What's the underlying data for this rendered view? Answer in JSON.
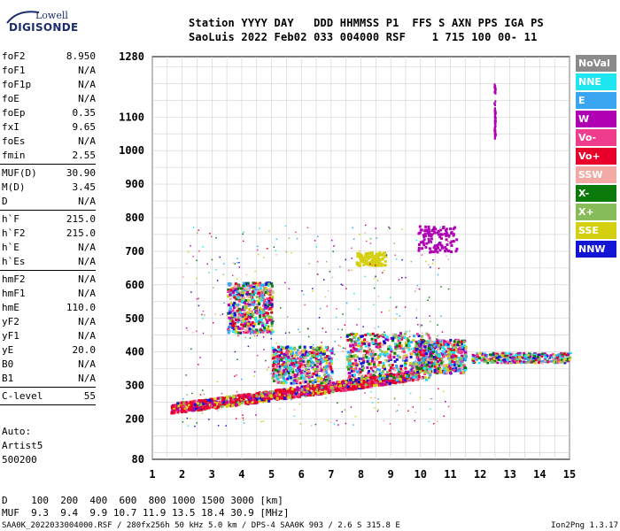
{
  "logo": {
    "line1": "Lowell",
    "line2": "DIGISONDE"
  },
  "header": {
    "labels": "Station YYYY DAY   DDD HHMMSS P1  FFS S AXN PPS IGA PS",
    "values": "SaoLuis 2022 Feb02 033 004000 RSF    1 715 100 00- 11"
  },
  "params": {
    "group1": [
      {
        "label": "foF2",
        "value": "8.950"
      },
      {
        "label": "foF1",
        "value": "N/A"
      },
      {
        "label": "foF1p",
        "value": "N/A"
      },
      {
        "label": "foE",
        "value": "N/A"
      },
      {
        "label": "foEp",
        "value": "0.35"
      },
      {
        "label": "fxI",
        "value": "9.65"
      },
      {
        "label": "foEs",
        "value": "N/A"
      },
      {
        "label": "fmin",
        "value": "2.55"
      }
    ],
    "group2": [
      {
        "label": "MUF(D)",
        "value": "30.90"
      },
      {
        "label": "M(D)",
        "value": "3.45"
      },
      {
        "label": "D",
        "value": "N/A"
      }
    ],
    "group3": [
      {
        "label": "h`F",
        "value": "215.0"
      },
      {
        "label": "h`F2",
        "value": "215.0"
      },
      {
        "label": "h`E",
        "value": "N/A"
      },
      {
        "label": "h`Es",
        "value": "N/A"
      }
    ],
    "group4": [
      {
        "label": "hmF2",
        "value": "N/A"
      },
      {
        "label": "hmF1",
        "value": "N/A"
      },
      {
        "label": "hmE",
        "value": "110.0"
      },
      {
        "label": "yF2",
        "value": "N/A"
      },
      {
        "label": "yF1",
        "value": "N/A"
      },
      {
        "label": "yE",
        "value": "20.0"
      },
      {
        "label": "B0",
        "value": "N/A"
      },
      {
        "label": "B1",
        "value": "N/A"
      }
    ],
    "group5": [
      {
        "label": "C-level",
        "value": "55"
      }
    ]
  },
  "auto": {
    "line1": "Auto:",
    "line2": "Artist5",
    "line3": "500200"
  },
  "legend": [
    {
      "label": "NoVal",
      "color": "#8a8a8a"
    },
    {
      "label": "NNE",
      "color": "#1ee6f0"
    },
    {
      "label": "E",
      "color": "#3aa6f2"
    },
    {
      "label": "W",
      "color": "#b000b4"
    },
    {
      "label": "Vo-",
      "color": "#f03c8c"
    },
    {
      "label": "Vo+",
      "color": "#e8002a"
    },
    {
      "label": "SSW",
      "color": "#f4aaa4"
    },
    {
      "label": "X-",
      "color": "#0a7a0a"
    },
    {
      "label": "X+",
      "color": "#86bc5a"
    },
    {
      "label": "SSE",
      "color": "#d4d010"
    },
    {
      "label": "NNW",
      "color": "#1414d4"
    }
  ],
  "bottom": {
    "line1": "D    100  200  400  600  800 1000 1500 3000 [km]",
    "line2": "MUF  9.3  9.4  9.9 10.7 11.9 13.5 18.4 30.9 [MHz]"
  },
  "footer": "SAA0K_2022033004000.RSF / 280fx256h 50 kHz 5.0 km / DPS-4 SAA0K 903 / 2.6 S 315.8 E",
  "version": "Ion2Png 1.3.17",
  "chart_data": {
    "type": "scatter",
    "x_ticks": [
      1,
      2,
      3,
      4,
      5,
      6,
      7,
      8,
      9,
      10,
      11,
      12,
      13,
      14,
      15
    ],
    "y_ticks": [
      80,
      200,
      300,
      400,
      500,
      600,
      700,
      800,
      900,
      1000,
      1100,
      1280
    ],
    "xlim": [
      1,
      15
    ],
    "ylim": [
      80,
      1280
    ],
    "grid": true,
    "clusters": [
      {
        "kind": "trace",
        "x": [
          1.6,
          9.9
        ],
        "y": [
          230,
          330
        ],
        "spread": 30,
        "series": "Vo+"
      },
      {
        "kind": "blob",
        "x": [
          7.5,
          10.3
        ],
        "y": [
          320,
          460
        ],
        "series": "mixed"
      },
      {
        "kind": "blob",
        "x": [
          9.8,
          11.5
        ],
        "y": [
          340,
          440
        ],
        "series": "mixed"
      },
      {
        "kind": "blob",
        "x": [
          3.5,
          5.0
        ],
        "y": [
          460,
          610
        ],
        "series": "mixed"
      },
      {
        "kind": "blob",
        "x": [
          5.0,
          7.0
        ],
        "y": [
          310,
          420
        ],
        "series": "mixed"
      },
      {
        "kind": "band",
        "x": [
          11.7,
          15.0
        ],
        "y": [
          370,
          400
        ],
        "series": "mixed"
      },
      {
        "kind": "blob",
        "x": [
          9.9,
          11.2
        ],
        "y": [
          700,
          780
        ],
        "series": "W"
      },
      {
        "kind": "blob",
        "x": [
          7.8,
          8.8
        ],
        "y": [
          660,
          700
        ],
        "series": "SSE"
      },
      {
        "kind": "line",
        "x": [
          12.45,
          12.5
        ],
        "y": [
          1040,
          1200
        ],
        "series": "W"
      }
    ]
  }
}
